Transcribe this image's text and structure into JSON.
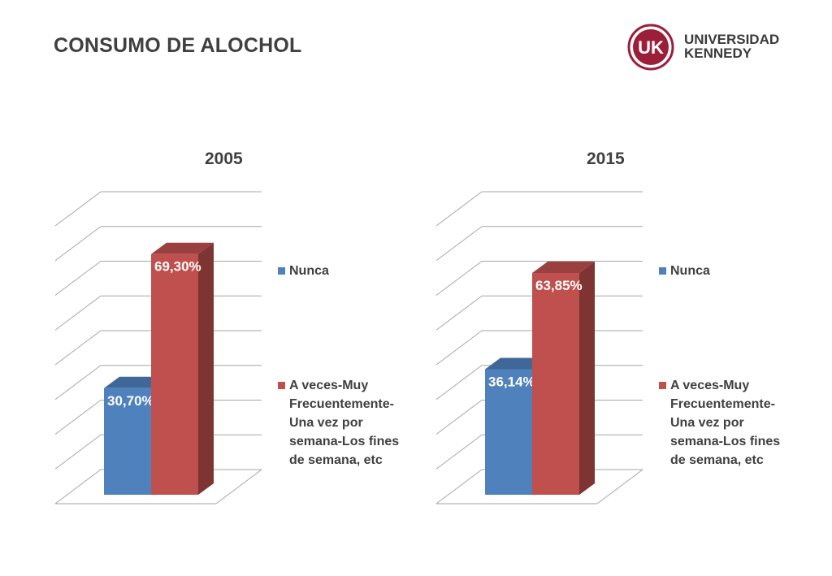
{
  "page": {
    "title": "CONSUMO DE ALOCHOL",
    "logo": {
      "mark": "UK",
      "line1": "UNIVERSIDAD",
      "line2": "KENNEDY",
      "color": "#9c1f3a"
    }
  },
  "colors": {
    "series1": "#4f81bd",
    "series2": "#c0504d"
  },
  "chart_data": [
    {
      "type": "bar",
      "title": "2005",
      "categories": [
        ""
      ],
      "series": [
        {
          "name": "Nunca",
          "values": [
            30.7
          ],
          "label": "30,70%"
        },
        {
          "name": "A veces-Muy Frecuentemente-Una vez por semana-Los fines de semana, etc",
          "values": [
            69.3
          ],
          "label": "69,30%"
        }
      ],
      "ylim": [
        0,
        80
      ],
      "grid": true,
      "legend": "right"
    },
    {
      "type": "bar",
      "title": "2015",
      "categories": [
        ""
      ],
      "series": [
        {
          "name": "Nunca",
          "values": [
            36.14
          ],
          "label": "36,14%"
        },
        {
          "name": "A veces-Muy Frecuentemente-Una vez por semana-Los fines de semana, etc",
          "values": [
            63.85
          ],
          "label": "63,85%"
        }
      ],
      "ylim": [
        0,
        80
      ],
      "grid": true,
      "legend": "right"
    }
  ]
}
